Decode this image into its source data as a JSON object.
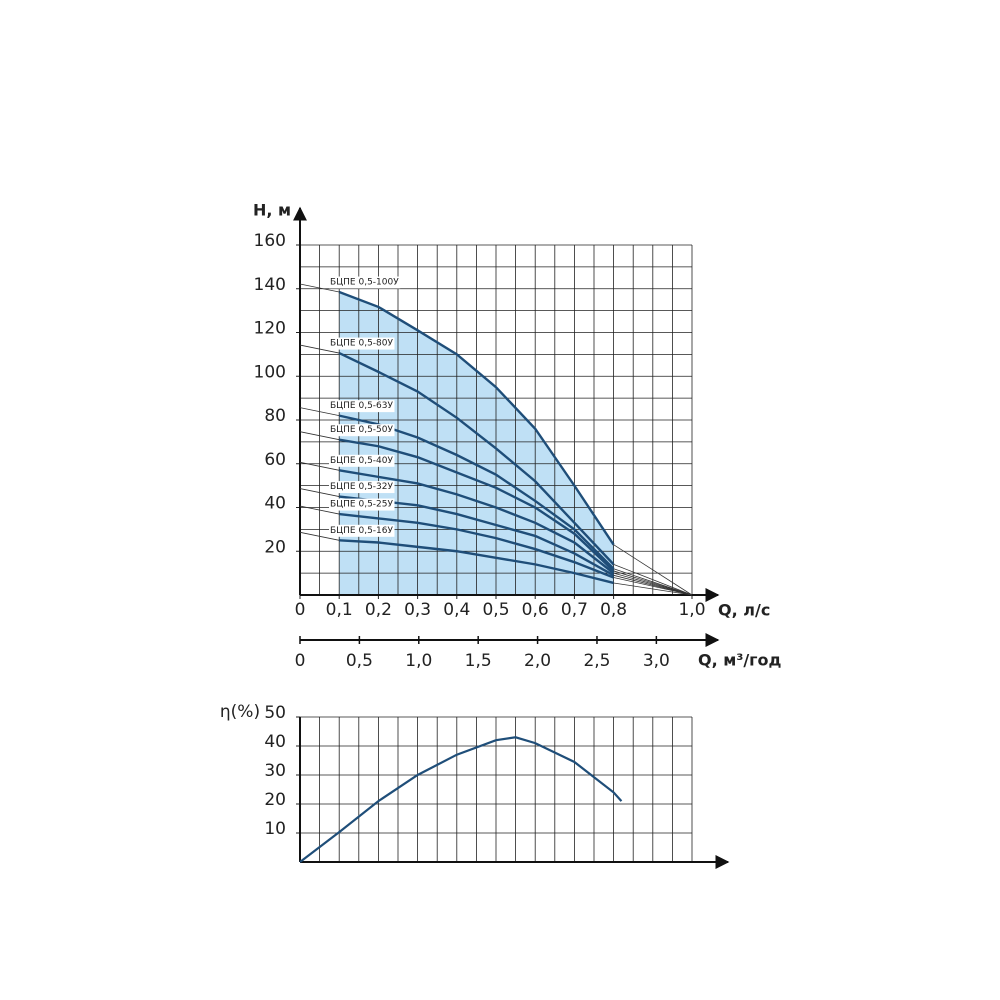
{
  "chart_data": [
    {
      "type": "line",
      "y_label": "H, м",
      "x_label": "Q, л/с",
      "x2_label": "Q, м³/год",
      "xlim": [
        0,
        1.0
      ],
      "xticks": [
        0,
        {
          "value": 0.1,
          "label": "0,1"
        },
        {
          "value": 0.2,
          "label": "0,2"
        },
        {
          "value": 0.3,
          "label": "0,3"
        },
        {
          "value": 0.4,
          "label": "0,4"
        },
        {
          "value": 0.5,
          "label": "0,5"
        },
        {
          "value": 0.6,
          "label": "0,6"
        },
        {
          "value": 0.7,
          "label": "0,7"
        },
        {
          "value": 0.8,
          "label": "0,8"
        },
        {
          "value": 1.0,
          "label": "1,0"
        }
      ],
      "x2lim": [
        0,
        3.3
      ],
      "x2ticks": [
        0,
        {
          "value": 0.5,
          "label": "0,5"
        },
        {
          "value": 1.0,
          "label": "1,0"
        },
        {
          "value": 1.5,
          "label": "1,5"
        },
        {
          "value": 2.0,
          "label": "2,0"
        },
        {
          "value": 2.5,
          "label": "2,5"
        },
        {
          "value": 3.0,
          "label": "3,0"
        }
      ],
      "ylim": [
        0,
        160
      ],
      "yticks": [
        20,
        40,
        60,
        80,
        100,
        120,
        140,
        160
      ],
      "grid": {
        "x": 0.05,
        "y": 10
      },
      "area_color": "#bfe0f5",
      "x": [
        0.1,
        0.2,
        0.3,
        0.4,
        0.5,
        0.6,
        0.7,
        0.8
      ],
      "series": [
        {
          "name": "БЦПЕ 0,5-100У",
          "color": "#1f4e79",
          "values": [
            138.5,
            131.7,
            121,
            110,
            95,
            76,
            50,
            23
          ]
        },
        {
          "name": "БЦПЕ 0,5-80У",
          "color": "#1f4e79",
          "values": [
            110.6,
            102,
            93,
            81,
            67,
            52,
            33,
            14
          ]
        },
        {
          "name": "БЦПЕ 0,5-63У",
          "color": "#1f4e79",
          "values": [
            82,
            78,
            72,
            64,
            55,
            43,
            30,
            12
          ]
        },
        {
          "name": "БЦПЕ 0,5-50У",
          "color": "#1f4e79",
          "values": [
            71,
            68,
            63,
            56,
            49,
            40,
            28,
            11
          ]
        },
        {
          "name": "БЦПЕ 0,5-40У",
          "color": "#1f4e79",
          "values": [
            57,
            54,
            51,
            46,
            40,
            33,
            24,
            10
          ]
        },
        {
          "name": "БЦПЕ 0,5-32У",
          "color": "#1f4e79",
          "values": [
            45,
            43,
            41,
            37,
            32,
            27,
            19,
            9
          ]
        },
        {
          "name": "БЦПЕ 0,5-25У",
          "color": "#1f4e79",
          "values": [
            37,
            35,
            33,
            30,
            26,
            21,
            15,
            8
          ]
        },
        {
          "name": "БЦПЕ 0,5-16У",
          "color": "#1f4e79",
          "values": [
            25,
            24,
            22,
            20,
            17,
            14,
            10,
            5.5
          ]
        }
      ]
    },
    {
      "type": "line",
      "y_label": "η(%)",
      "xlim": [
        0,
        1.0
      ],
      "ylim": [
        0,
        50
      ],
      "yticks": [
        10,
        20,
        30,
        40,
        50
      ],
      "grid": {
        "x": 0.05,
        "y": 10
      },
      "x": [
        0,
        0.1,
        0.2,
        0.3,
        0.4,
        0.5,
        0.55,
        0.6,
        0.7,
        0.8,
        0.82
      ],
      "color": "#1f4e79",
      "values": [
        0,
        10.3,
        21,
        30,
        37,
        42,
        43,
        41,
        34.5,
        24,
        21
      ]
    }
  ]
}
